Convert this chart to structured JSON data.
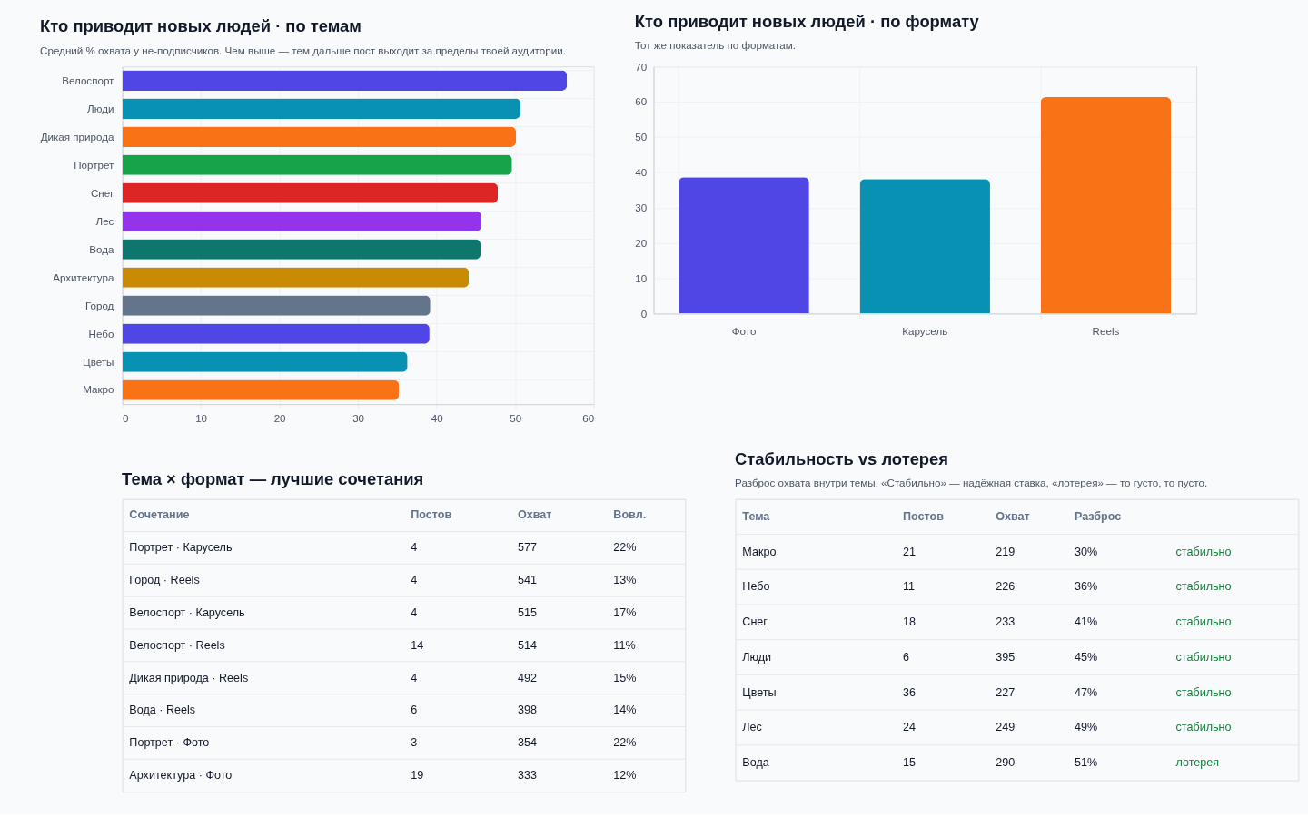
{
  "chart_data": [
    {
      "type": "bar",
      "orientation": "horizontal",
      "title": "Кто приводит новых людей · по темам",
      "subtitle": "Средний % охвата у не-подписчиков. Чем выше — тем дальше пост выходит за пределы твоей аудитории.",
      "categories": [
        "Велоспорт",
        "Люди",
        "Дикая природа",
        "Портрет",
        "Снег",
        "Лес",
        "Вода",
        "Архитектура",
        "Город",
        "Небо",
        "Цветы",
        "Макро"
      ],
      "values": [
        56.6,
        50.7,
        50.1,
        49.6,
        47.8,
        45.7,
        45.6,
        44.1,
        39.2,
        39.1,
        36.3,
        35.2
      ],
      "colors": [
        "#4f46e5",
        "#0891b2",
        "#f97316",
        "#16a34a",
        "#dc2626",
        "#9333ea",
        "#0f766e",
        "#ca8a04",
        "#64748b",
        "#4f46e5",
        "#0891b2",
        "#f97316"
      ],
      "xlim": [
        0,
        60
      ],
      "xticks": [
        0,
        10,
        20,
        30,
        40,
        50,
        60
      ],
      "grid": true,
      "legend": false
    },
    {
      "type": "bar",
      "title": "Кто приводит новых людей · по формату",
      "subtitle": "Тот же показатель по форматам.",
      "categories": [
        "Фото",
        "Карусель",
        "Reels"
      ],
      "values": [
        38.6,
        38.1,
        61.3
      ],
      "colors": [
        "#4f46e5",
        "#0891b2",
        "#f97316"
      ],
      "ylim": [
        0,
        70
      ],
      "yticks": [
        0,
        10,
        20,
        30,
        40,
        50,
        60,
        70
      ],
      "grid": true,
      "legend": false
    },
    {
      "type": "other",
      "title": "Тема × формат — лучшие сочетания",
      "categories": [
        "Сочетание",
        "Постов",
        "Охват",
        "Вовл."
      ],
      "annotations": [
        "Портрет · Карусель",
        "4",
        "577",
        "22%",
        "Город · Reels",
        "4",
        "541",
        "13%",
        "Велоспорт · Карусель",
        "4",
        "515",
        "17%",
        "Велоспорт · Reels",
        "14",
        "514",
        "11%",
        "Дикая природа · Reels",
        "4",
        "492",
        "15%",
        "Вода · Reels",
        "6",
        "398",
        "14%",
        "Портрет · Фото",
        "3",
        "354",
        "22%",
        "Архитектура · Фото",
        "19",
        "333",
        "12%"
      ]
    },
    {
      "type": "other",
      "title": "Стабильность vs лотерея",
      "subtitle": "Разброс охвата внутри темы. «Стабильно» — надёжная ставка, «лотерея» — то густо, то пусто.",
      "categories": [
        "Тема",
        "Постов",
        "Охват",
        "Разброс",
        null
      ],
      "annotations": [
        "Макро",
        "21",
        "219",
        "30%",
        "стабильно",
        "Небо",
        "11",
        "226",
        "36%",
        "стабильно",
        "Снег",
        "18",
        "233",
        "41%",
        "стабильно",
        "Люди",
        "6",
        "395",
        "45%",
        "стабильно",
        "Цветы",
        "36",
        "227",
        "47%",
        "стабильно",
        "Лес",
        "24",
        "249",
        "49%",
        "стабильно",
        "Вода",
        "15",
        "290",
        "51%",
        "лотерея"
      ]
    }
  ]
}
